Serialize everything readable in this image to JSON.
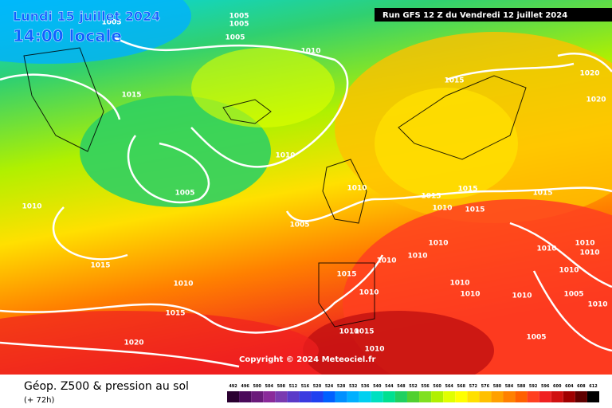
{
  "header": {
    "date": "Lundi 15 juillet 2024",
    "time": "14:00 locale",
    "run": "Run GFS 12 Z du Vendredi 12 juillet 2024"
  },
  "isobar_labels": [
    "1005",
    "1005",
    "1005",
    "1005",
    "1010",
    "1015",
    "1015",
    "1020",
    "1020",
    "1010",
    "1005",
    "1010",
    "1010",
    "1015",
    "1015",
    "1015",
    "1010",
    "1015",
    "1005",
    "1010",
    "1010",
    "1010",
    "1010",
    "1010",
    "1010",
    "1015",
    "1010",
    "1015",
    "1010",
    "1010",
    "1010",
    "1010",
    "1010",
    "1005",
    "1010",
    "1015",
    "1010",
    "1015",
    "1005",
    "1020",
    "1010"
  ],
  "copyright": "Copyright © 2024 Meteociel.fr",
  "legend": {
    "title": "Géop. Z500 & pression au sol",
    "subtitle": "(+ 72h)",
    "labels": [
      "492",
      "496",
      "500",
      "504",
      "508",
      "512",
      "516",
      "520",
      "524",
      "528",
      "532",
      "536",
      "540",
      "544",
      "548",
      "552",
      "556",
      "560",
      "564",
      "568",
      "572",
      "576",
      "580",
      "584",
      "588",
      "592",
      "596",
      "600",
      "604",
      "608",
      "612"
    ],
    "colors": [
      "#2a0030",
      "#4a0a5a",
      "#6a1a7a",
      "#8a2a9a",
      "#7a3ab0",
      "#5a3ac8",
      "#3a3ae0",
      "#2040f0",
      "#0060ff",
      "#0090ff",
      "#00b0ff",
      "#00d0f0",
      "#00e0c0",
      "#00e090",
      "#20d060",
      "#50d030",
      "#80e020",
      "#b0f000",
      "#e0ff00",
      "#ffff00",
      "#ffe000",
      "#ffc000",
      "#ffa000",
      "#ff8000",
      "#ff6000",
      "#ff4020",
      "#f02020",
      "#d01010",
      "#a00000",
      "#600000",
      "#000000"
    ]
  }
}
